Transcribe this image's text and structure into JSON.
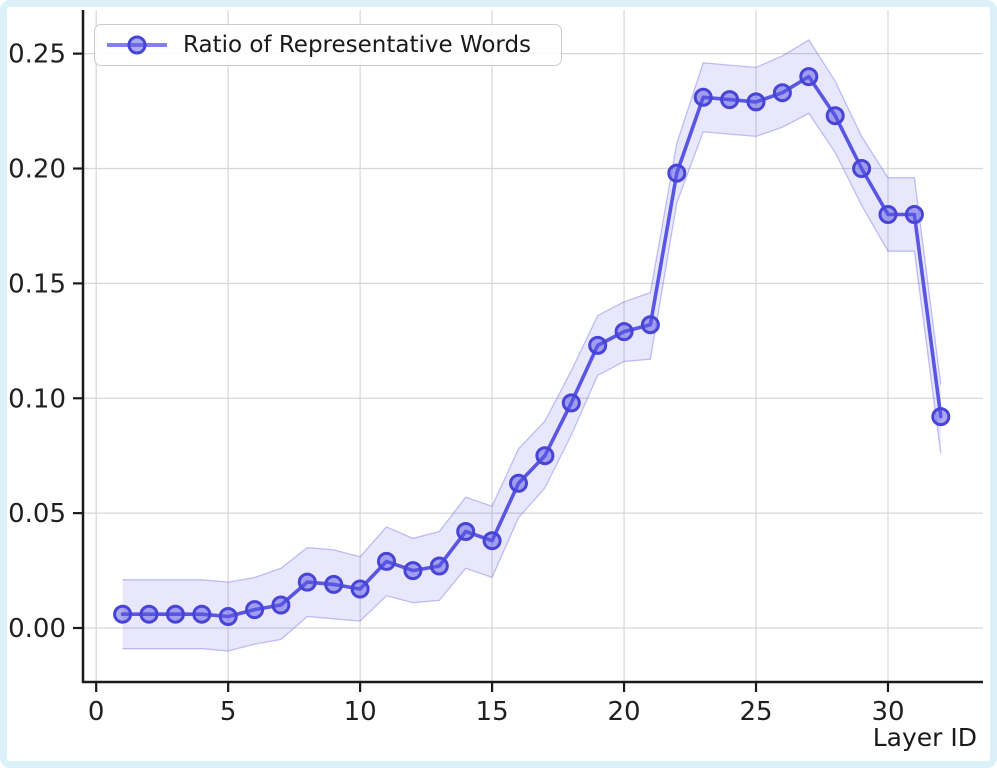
{
  "figure": {
    "frame_color": "#dcf0fa",
    "plot_background": "#ffffff"
  },
  "legend": {
    "label": "Ratio of Representative Words"
  },
  "axes": {
    "x_label": "Layer ID"
  },
  "chart_data": {
    "type": "line",
    "title": "",
    "xlabel": "Layer ID",
    "ylabel": "",
    "grid": true,
    "legend_position": "upper left",
    "xlim": [
      -0.5,
      33.6
    ],
    "ylim": [
      -0.0235,
      0.269
    ],
    "x_ticks": [
      0,
      5,
      10,
      15,
      20,
      25,
      30
    ],
    "x_tick_labels": [
      "0",
      "5",
      "10",
      "15",
      "20",
      "25",
      "30"
    ],
    "y_ticks": [
      0.0,
      0.05,
      0.1,
      0.15,
      0.2,
      0.25
    ],
    "y_tick_labels": [
      "0.00",
      "0.05",
      "0.10",
      "0.15",
      "0.20",
      "0.25"
    ],
    "x": [
      1,
      2,
      3,
      4,
      5,
      6,
      7,
      8,
      9,
      10,
      11,
      12,
      13,
      14,
      15,
      16,
      17,
      18,
      19,
      20,
      21,
      22,
      23,
      24,
      25,
      26,
      27,
      28,
      29,
      30,
      31,
      32
    ],
    "series": [
      {
        "name": "Ratio of Representative Words",
        "values": [
          0.006,
          0.006,
          0.006,
          0.006,
          0.005,
          0.008,
          0.01,
          0.02,
          0.019,
          0.017,
          0.029,
          0.025,
          0.027,
          0.042,
          0.038,
          0.063,
          0.075,
          0.098,
          0.123,
          0.129,
          0.132,
          0.198,
          0.231,
          0.23,
          0.229,
          0.233,
          0.24,
          0.223,
          0.2,
          0.18,
          0.18,
          0.092
        ],
        "band_upper": [
          0.021,
          0.021,
          0.021,
          0.021,
          0.02,
          0.022,
          0.026,
          0.035,
          0.034,
          0.031,
          0.044,
          0.039,
          0.042,
          0.057,
          0.053,
          0.078,
          0.09,
          0.112,
          0.136,
          0.142,
          0.146,
          0.211,
          0.246,
          0.245,
          0.244,
          0.249,
          0.256,
          0.238,
          0.214,
          0.196,
          0.196,
          0.106
        ],
        "band_lower": [
          -0.009,
          -0.009,
          -0.009,
          -0.009,
          -0.01,
          -0.007,
          -0.005,
          0.005,
          0.004,
          0.003,
          0.014,
          0.011,
          0.012,
          0.026,
          0.022,
          0.048,
          0.061,
          0.084,
          0.11,
          0.116,
          0.117,
          0.185,
          0.216,
          0.215,
          0.214,
          0.218,
          0.224,
          0.207,
          0.184,
          0.164,
          0.164,
          0.076
        ]
      }
    ],
    "colors": {
      "line": "#5956e3",
      "marker_edge": "#4744d6",
      "marker_fill": "rgba(89,86,227,0.5)",
      "band_fill": "rgba(89,86,227,0.14)",
      "band_edge": "rgba(89,86,227,0.35)",
      "grid": "#d7d7d7",
      "spine": "#1a1a1a",
      "tick_label": "#202020"
    }
  }
}
